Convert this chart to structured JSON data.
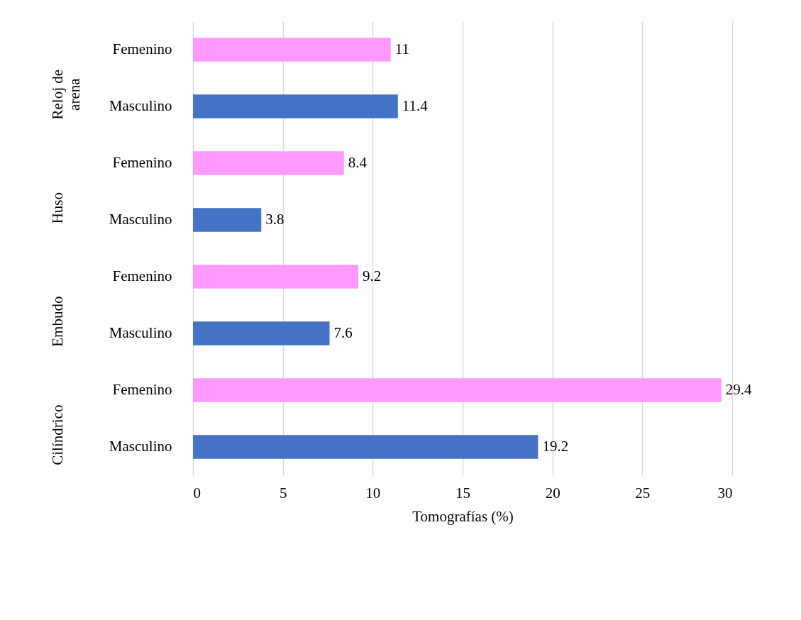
{
  "chart_data": {
    "type": "bar",
    "orientation": "horizontal",
    "categories": [
      "Femenino",
      "Masculino",
      "Femenino",
      "Masculino",
      "Femenino",
      "Masculino",
      "Femenino",
      "Masculino"
    ],
    "values": [
      11,
      11.4,
      8.4,
      3.8,
      9.2,
      7.6,
      29.4,
      19.2
    ],
    "colors": [
      "#ff99ff",
      "#4472c4",
      "#ff99ff",
      "#4472c4",
      "#ff99ff",
      "#4472c4",
      "#ff99ff",
      "#4472c4"
    ],
    "annotations": [
      "Reloj de arena",
      "Huso",
      "Embudo",
      "Cilíndrico"
    ],
    "xlabel": "Tomografías (%)",
    "xlim": [
      0,
      30
    ],
    "xticks": [
      0,
      5,
      10,
      15,
      20,
      25,
      30
    ],
    "grid": "x",
    "legend": false,
    "data_labels": true
  }
}
